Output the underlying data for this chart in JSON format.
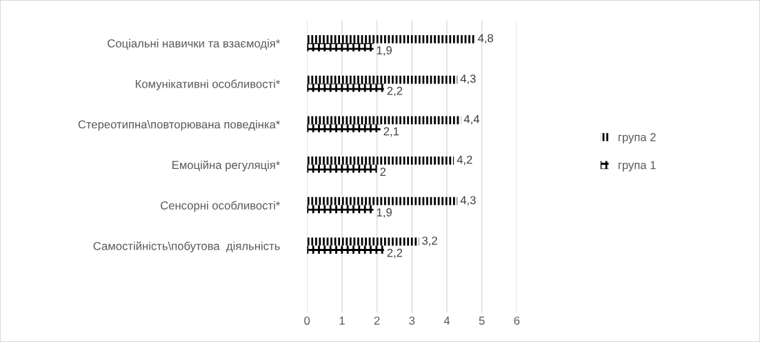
{
  "chart_data": {
    "type": "bar",
    "orientation": "horizontal",
    "categories": [
      "Соціальні навички та взаємодія*",
      "Комунікативні особливості*",
      "Стереотипна\\повторювана поведінка*",
      "Емоційна регуляція*",
      "Сенсорні особливості*",
      "Самостійність\\побутова  діяльність"
    ],
    "series": [
      {
        "name": "група 2",
        "color": "#000000",
        "values": [
          4.8,
          4.3,
          4.4,
          4.2,
          4.3,
          3.2
        ],
        "value_labels": [
          "4,8",
          "4,3",
          "4,4",
          "4,2",
          "4,3",
          "3,2"
        ]
      },
      {
        "name": "група 1",
        "color": "#000000",
        "values": [
          1.9,
          2.2,
          2.1,
          2,
          1.9,
          2.2
        ],
        "value_labels": [
          "1,9",
          "2,2",
          "2,1",
          "2",
          "1,9",
          "2,2"
        ]
      }
    ],
    "xlim": [
      0,
      6
    ],
    "xticks": [
      0,
      1,
      2,
      3,
      4,
      5,
      6
    ],
    "grid": "x",
    "legend": "right"
  }
}
